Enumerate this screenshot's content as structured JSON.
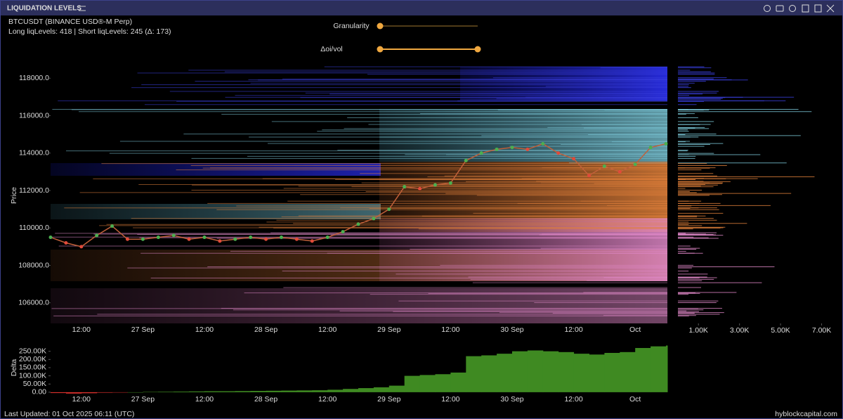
{
  "header": {
    "title": "LIQUIDATION LEVELS"
  },
  "info": {
    "symbol": "BTCUSDT (BINANCE USD®-M Perp)",
    "levels": "Long liqLevels: 418 | Short liqLevels: 245 (Δ: 173)"
  },
  "controls": [
    {
      "label": "Granularity"
    },
    {
      "label": "Δoi/vol"
    }
  ],
  "footer": {
    "updated": "Last Updated: 01 Oct 2025 06:11 (UTC)",
    "brand": "hyblockcapital.com"
  },
  "volume_axis": {
    "xlim": [
      0,
      7700
    ],
    "xticks": [
      {
        "value": 1000,
        "label": "1.00K"
      },
      {
        "value": 3000,
        "label": "3.00K"
      },
      {
        "value": 5000,
        "label": "5.00K"
      },
      {
        "value": 7000,
        "label": "7.00K"
      }
    ]
  },
  "chart_data": [
    {
      "type": "line",
      "y_label": "Price",
      "categories": [
        null,
        null,
        "12:00",
        null,
        null,
        null,
        "27 Sep",
        null,
        null,
        null,
        "12:00",
        null,
        null,
        null,
        "28 Sep",
        null,
        null,
        null,
        "12:00",
        null,
        null,
        null,
        "29 Sep",
        null,
        null,
        null,
        "12:00",
        null,
        null,
        null,
        "30 Sep",
        null,
        null,
        null,
        "12:00",
        null,
        null,
        null,
        "Oct",
        null,
        null
      ],
      "values": [
        109500,
        109200,
        109000,
        109600,
        110100,
        109400,
        109400,
        109500,
        109600,
        109400,
        109500,
        109300,
        109400,
        109500,
        109400,
        109500,
        109400,
        109300,
        109500,
        109800,
        110200,
        110500,
        111000,
        112200,
        112100,
        112300,
        112400,
        113600,
        114000,
        114200,
        114300,
        114200,
        114500,
        114000,
        113700,
        112800,
        113300,
        113000,
        113400,
        114300,
        114500
      ],
      "color": "#c0603a",
      "up_color": "#4caf50",
      "down_color": "#e04a3a",
      "ylim": [
        104900,
        118800
      ],
      "yticks": [
        {
          "value": 106000,
          "label": "106000.0"
        },
        {
          "value": 108000,
          "label": "108000.0"
        },
        {
          "value": 110000,
          "label": "110000.0"
        },
        {
          "value": 112000,
          "label": "112000.0"
        },
        {
          "value": 114000,
          "label": "114000.0"
        },
        {
          "value": 116000,
          "label": "116000.0"
        },
        {
          "value": 118000,
          "label": "118000.0"
        }
      ]
    },
    {
      "type": "area",
      "y_label": "Delta",
      "categories": [
        null,
        null,
        "12:00",
        null,
        null,
        null,
        "27 Sep",
        null,
        null,
        null,
        "12:00",
        null,
        null,
        null,
        "28 Sep",
        null,
        null,
        null,
        "12:00",
        null,
        null,
        null,
        "29 Sep",
        null,
        null,
        null,
        "12:00",
        null,
        null,
        null,
        "30 Sep",
        null,
        null,
        null,
        "12:00",
        null,
        null,
        null,
        "Oct",
        null,
        null
      ],
      "values": [
        -5000,
        -8000,
        -6000,
        -3000,
        -2000,
        0,
        2000,
        3000,
        4000,
        5000,
        6000,
        6000,
        7000,
        8000,
        9000,
        10000,
        11000,
        12000,
        15000,
        20000,
        25000,
        30000,
        40000,
        100000,
        105000,
        110000,
        120000,
        220000,
        225000,
        235000,
        250000,
        255000,
        250000,
        245000,
        235000,
        230000,
        240000,
        245000,
        270000,
        280000,
        285000
      ],
      "color": "#3f8a22",
      "negative_color": "#d9302c",
      "ylim": [
        -9000,
        300000
      ],
      "yticks": [
        {
          "value": 0,
          "label": "0.00"
        },
        {
          "value": 50000,
          "label": "50.00K"
        },
        {
          "value": 100000,
          "label": "100.00K"
        },
        {
          "value": 150000,
          "label": "150.00K"
        },
        {
          "value": 200000,
          "label": "200.00K"
        },
        {
          "value": 250000,
          "label": "250.00K"
        }
      ]
    }
  ]
}
